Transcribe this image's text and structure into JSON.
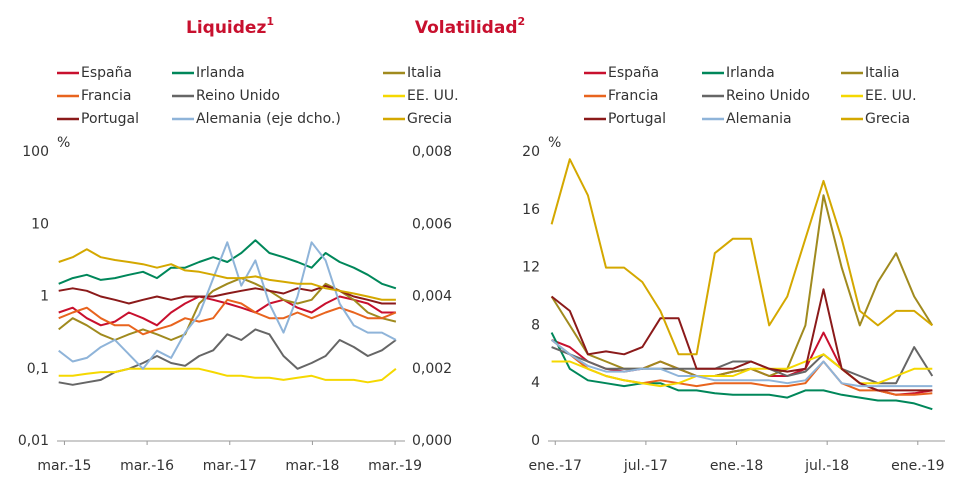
{
  "chart_data": [
    {
      "type": "line",
      "title": "Liquidez",
      "title_note": "1",
      "y_label": "%",
      "log": true,
      "xlim": [
        2015.08,
        2019.29
      ],
      "xticks": [
        {
          "value": 2015.17,
          "label": "mar.-15"
        },
        {
          "value": 2016.17,
          "label": "mar.-16"
        },
        {
          "value": 2017.17,
          "label": "mar.-17"
        },
        {
          "value": 2018.17,
          "label": "mar.-18"
        },
        {
          "value": 2019.17,
          "label": "mar.-19"
        }
      ],
      "ylim": [
        0.01,
        100
      ],
      "yticks": [
        {
          "value": 0.01,
          "label": "0,01"
        },
        {
          "value": 0.1,
          "label": "0,1"
        },
        1,
        10,
        100
      ],
      "y2lim": [
        0,
        0.008
      ],
      "y2ticks": [
        {
          "value": 0,
          "label": "0,000"
        },
        {
          "value": 0.002,
          "label": "0,002"
        },
        {
          "value": 0.004,
          "label": "0,004"
        },
        {
          "value": 0.006,
          "label": "0,006"
        },
        {
          "value": 0.008,
          "label": "0,008"
        }
      ],
      "x": [
        2015.1,
        2015.27,
        2015.44,
        2015.61,
        2015.78,
        2015.95,
        2016.12,
        2016.29,
        2016.46,
        2016.63,
        2016.8,
        2016.97,
        2017.14,
        2017.31,
        2017.48,
        2017.65,
        2017.82,
        2017.99,
        2018.16,
        2018.33,
        2018.5,
        2018.67,
        2018.84,
        2019.01,
        2019.18
      ],
      "series": [
        {
          "name": "España",
          "color": "#c8102e",
          "values": [
            0.6,
            0.7,
            0.5,
            0.4,
            0.45,
            0.6,
            0.5,
            0.4,
            0.6,
            0.8,
            1.0,
            0.9,
            0.8,
            0.7,
            0.6,
            0.8,
            0.9,
            0.7,
            0.6,
            0.8,
            1.0,
            0.9,
            0.8,
            0.6,
            0.6
          ]
        },
        {
          "name": "Irlanda",
          "color": "#00875a",
          "values": [
            1.5,
            1.8,
            2,
            1.7,
            1.8,
            2,
            2.2,
            1.8,
            2.5,
            2.5,
            3,
            3.5,
            3,
            4,
            6,
            4,
            3.5,
            3,
            2.5,
            4,
            3,
            2.5,
            2,
            1.5,
            1.3
          ]
        },
        {
          "name": "Italia",
          "color": "#a08a1e",
          "values": [
            0.35,
            0.5,
            0.4,
            0.3,
            0.25,
            0.3,
            0.35,
            0.3,
            0.25,
            0.3,
            0.8,
            1.2,
            1.5,
            1.8,
            1.5,
            1.2,
            0.9,
            0.8,
            0.9,
            1.5,
            1.2,
            0.9,
            0.6,
            0.5,
            0.45
          ]
        },
        {
          "name": "Francia",
          "color": "#e8641e",
          "values": [
            0.5,
            0.6,
            0.7,
            0.5,
            0.4,
            0.4,
            0.3,
            0.35,
            0.4,
            0.5,
            0.45,
            0.5,
            0.9,
            0.8,
            0.6,
            0.5,
            0.5,
            0.6,
            0.5,
            0.6,
            0.7,
            0.6,
            0.5,
            0.5,
            0.6
          ]
        },
        {
          "name": "Reino Unido",
          "color": "#666666",
          "values": [
            0.065,
            0.06,
            0.065,
            0.07,
            0.09,
            0.1,
            0.12,
            0.15,
            0.12,
            0.11,
            0.15,
            0.18,
            0.3,
            0.25,
            0.35,
            0.3,
            0.15,
            0.1,
            0.12,
            0.15,
            0.25,
            0.2,
            0.15,
            0.18,
            0.25
          ]
        },
        {
          "name": "EE. UU.",
          "color": "#f5d800",
          "values": [
            0.08,
            0.08,
            0.085,
            0.09,
            0.09,
            0.1,
            0.1,
            0.1,
            0.1,
            0.1,
            0.1,
            0.09,
            0.08,
            0.08,
            0.075,
            0.075,
            0.07,
            0.075,
            0.08,
            0.07,
            0.07,
            0.07,
            0.065,
            0.07,
            0.1
          ]
        },
        {
          "name": "Portugal",
          "color": "#8b1a1a",
          "values": [
            1.2,
            1.3,
            1.2,
            1.0,
            0.9,
            0.8,
            0.9,
            1.0,
            0.9,
            1.0,
            1.0,
            1.0,
            1.1,
            1.2,
            1.3,
            1.2,
            1.1,
            1.3,
            1.2,
            1.4,
            1.2,
            1.0,
            0.9,
            0.8,
            0.8
          ]
        },
        {
          "name": "Alemania (eje dcho.)",
          "color": "#8fb4d9",
          "axis": "y2",
          "values": [
            0.0025,
            0.0022,
            0.0023,
            0.0026,
            0.0028,
            0.0024,
            0.002,
            0.0025,
            0.0023,
            0.003,
            0.0035,
            0.0045,
            0.0055,
            0.0043,
            0.005,
            0.0038,
            0.003,
            0.004,
            0.0055,
            0.005,
            0.0038,
            0.0032,
            0.003,
            0.003,
            0.0028
          ]
        },
        {
          "name": "Grecia",
          "color": "#d4a800",
          "values": [
            3,
            3.5,
            4.5,
            3.5,
            3.2,
            3,
            2.8,
            2.5,
            2.8,
            2.3,
            2.2,
            2,
            1.8,
            1.8,
            1.9,
            1.7,
            1.6,
            1.5,
            1.5,
            1.3,
            1.2,
            1.1,
            1.0,
            0.9,
            0.9
          ]
        }
      ]
    },
    {
      "type": "line",
      "title": "Volatilidad",
      "title_note": "2",
      "y_label": "%",
      "log": false,
      "xlim": [
        2016.96,
        2019.15
      ],
      "xticks": [
        {
          "value": 2017.0,
          "label": "ene.-17"
        },
        {
          "value": 2017.5,
          "label": "jul.-17"
        },
        {
          "value": 2018.0,
          "label": "ene.-18"
        },
        {
          "value": 2018.5,
          "label": "jul.-18"
        },
        {
          "value": 2019.0,
          "label": "ene.-19"
        }
      ],
      "ylim": [
        0,
        20
      ],
      "yticks": [
        0,
        4,
        8,
        12,
        16,
        20
      ],
      "x": [
        2016.98,
        2017.08,
        2017.18,
        2017.28,
        2017.38,
        2017.48,
        2017.58,
        2017.68,
        2017.78,
        2017.88,
        2017.98,
        2018.08,
        2018.18,
        2018.28,
        2018.38,
        2018.48,
        2018.58,
        2018.68,
        2018.78,
        2018.88,
        2018.98,
        2019.08
      ],
      "series": [
        {
          "name": "España",
          "color": "#c8102e",
          "values": [
            7,
            6.5,
            5.5,
            5,
            4.8,
            5,
            5.5,
            5,
            4.5,
            4.5,
            4.8,
            5,
            4.5,
            4.5,
            5,
            7.5,
            5,
            4,
            3.5,
            3.2,
            3.3,
            3.5
          ]
        },
        {
          "name": "Irlanda",
          "color": "#00875a",
          "values": [
            7.5,
            5,
            4.2,
            4,
            3.8,
            4,
            4,
            3.5,
            3.5,
            3.3,
            3.2,
            3.2,
            3.2,
            3,
            3.5,
            3.5,
            3.2,
            3,
            2.8,
            2.8,
            2.6,
            2.2
          ]
        },
        {
          "name": "Italia",
          "color": "#a08a1e",
          "values": [
            10,
            8,
            6,
            5.5,
            5,
            5,
            5.5,
            5,
            4.5,
            4.5,
            4.8,
            5,
            4.5,
            5,
            8,
            17,
            12,
            8,
            11,
            13,
            10,
            8
          ]
        },
        {
          "name": "Francia",
          "color": "#e8641e",
          "values": [
            7,
            6,
            5,
            4.5,
            4.2,
            4,
            4.2,
            4,
            3.8,
            4,
            4,
            4,
            3.8,
            3.8,
            4,
            5.5,
            4,
            3.5,
            3.5,
            3.2,
            3.2,
            3.3
          ]
        },
        {
          "name": "Reino Unido",
          "color": "#666666",
          "values": [
            6.5,
            6,
            5.5,
            5,
            5,
            5,
            5,
            5,
            5,
            5,
            5.5,
            5.5,
            5,
            4.5,
            4.8,
            6,
            5,
            4.5,
            4,
            4,
            6.5,
            4.5
          ]
        },
        {
          "name": "EE. UU.",
          "color": "#f5d800",
          "values": [
            5.5,
            5.5,
            5,
            4.5,
            4.2,
            4,
            3.8,
            4,
            4.5,
            4.5,
            4.5,
            5,
            5,
            5,
            5.5,
            6,
            5,
            4,
            4,
            4.5,
            5,
            5
          ]
        },
        {
          "name": "Portugal",
          "color": "#8b1a1a",
          "values": [
            10,
            9,
            6,
            6.2,
            6,
            6.5,
            8.5,
            8.5,
            5,
            5,
            5,
            5.5,
            5,
            4.8,
            5,
            10.5,
            5,
            4,
            3.5,
            3.5,
            3.5,
            3.5
          ]
        },
        {
          "name": "Alemania",
          "color": "#8fb4d9",
          "values": [
            7,
            6,
            5.2,
            4.8,
            4.8,
            5,
            5,
            4.5,
            4.5,
            4.2,
            4.2,
            4.2,
            4.2,
            4,
            4.2,
            5.5,
            4,
            3.8,
            3.8,
            3.8,
            3.8,
            3.8
          ]
        },
        {
          "name": "Grecia",
          "color": "#d4a800",
          "values": [
            15,
            19.5,
            17,
            12,
            12,
            11,
            9,
            6,
            6,
            13,
            14,
            14,
            8,
            10,
            14,
            18,
            14,
            9,
            8,
            9,
            9,
            8
          ]
        }
      ]
    }
  ]
}
